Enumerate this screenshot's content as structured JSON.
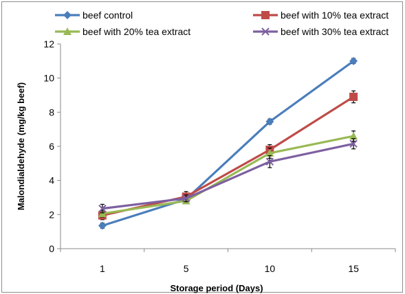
{
  "chart_data": {
    "type": "line",
    "x": [
      1,
      5,
      10,
      15
    ],
    "xlabel": "Storage period (Days)",
    "ylabel": "Malondialdehyde (mg/kg beef)",
    "ylim": [
      0,
      12
    ],
    "yticks": [
      0,
      2,
      4,
      6,
      8,
      10,
      12
    ],
    "grid": false,
    "legend_position": "top",
    "series": [
      {
        "name": "beef control",
        "color": "#4a7ebb",
        "marker": "diamond",
        "values": [
          1.35,
          2.9,
          7.45,
          11.0
        ],
        "errors": [
          0.15,
          0.15,
          0.15,
          0.15
        ]
      },
      {
        "name": "beef with 10% tea extract",
        "color": "#be4b48",
        "marker": "square",
        "values": [
          1.95,
          3.05,
          5.8,
          8.9
        ],
        "errors": [
          0.25,
          0.3,
          0.3,
          0.35
        ]
      },
      {
        "name": "beef with 20% tea extract",
        "color": "#98b954",
        "marker": "triangle",
        "values": [
          2.05,
          2.8,
          5.6,
          6.6
        ],
        "errors": [
          0.2,
          0.15,
          0.3,
          0.3
        ]
      },
      {
        "name": "beef with 30% tea extract",
        "color": "#7d60a0",
        "marker": "cross",
        "values": [
          2.35,
          2.95,
          5.1,
          6.15
        ],
        "errors": [
          0.25,
          0.2,
          0.35,
          0.3
        ]
      }
    ]
  }
}
